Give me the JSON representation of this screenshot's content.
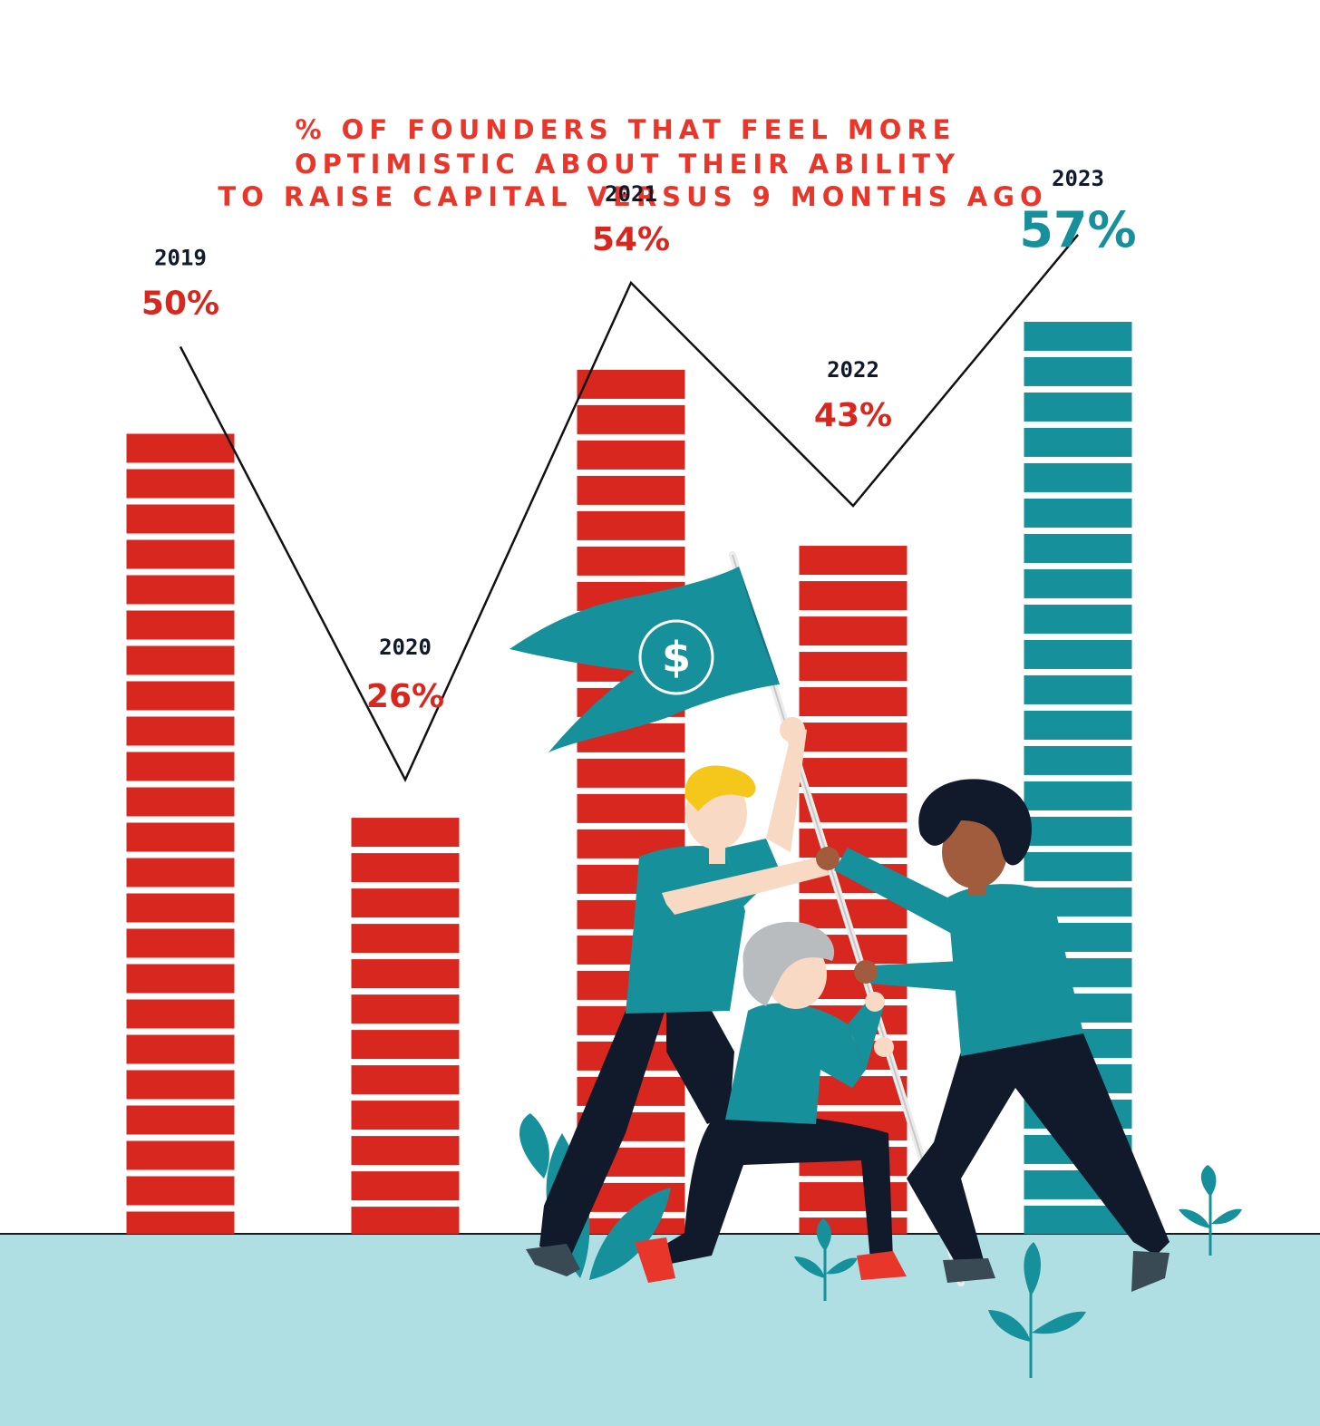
{
  "chart_data": {
    "type": "bar",
    "title_lines": [
      "% OF FOUNDERS THAT FEEL MORE",
      "OPTIMISTIC ABOUT THEIR ABILITY",
      "TO RAISE CAPITAL VERSUS 9 MONTHS AGO"
    ],
    "categories": [
      "2019",
      "2020",
      "2021",
      "2022",
      "2023"
    ],
    "values": [
      50,
      26,
      54,
      43,
      57
    ],
    "value_labels": [
      "50%",
      "26%",
      "54%",
      "43%",
      "57%"
    ],
    "highlight_category": "2023",
    "ylim": [
      0,
      60
    ],
    "grid": false,
    "legend": "none",
    "colors": {
      "bar": "#d7271e",
      "highlight": "#16919b",
      "year_text": "#111a2b",
      "title": "#e8362b",
      "trend_line": "#111111",
      "ground": "#afdfe3"
    }
  },
  "illustration": {
    "flag_symbol": "$",
    "icons": [
      "flag-icon",
      "dollar-icon",
      "plant-icon"
    ]
  }
}
